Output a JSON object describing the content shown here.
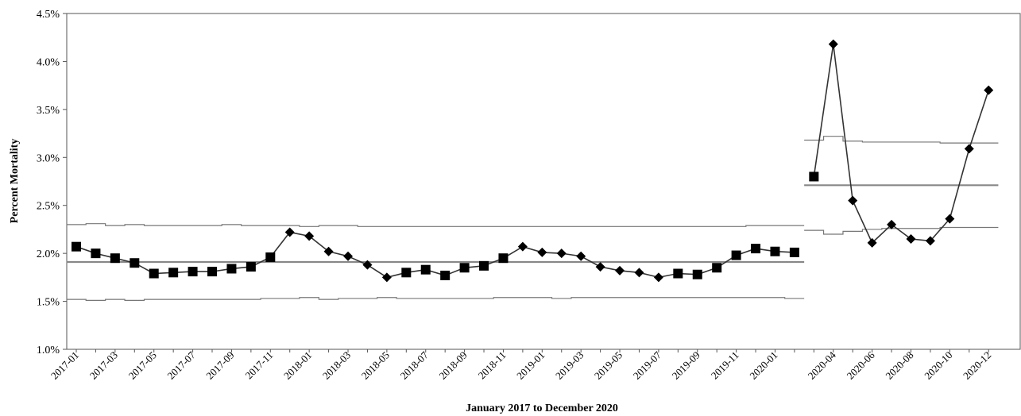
{
  "chart_data": {
    "type": "line",
    "title": "",
    "xlabel": "January 2017 to December 2020",
    "ylabel": "Percent Mortality",
    "ylim": [
      1.0,
      4.5
    ],
    "y_ticks": [
      "1.0%",
      "1.5%",
      "2.0%",
      "2.5%",
      "3.0%",
      "3.5%",
      "4.0%",
      "4.5%"
    ],
    "x_tick_labels": [
      "2017-01",
      "2017-03",
      "2017-05",
      "2017-07",
      "2017-09",
      "2017-11",
      "2018-01",
      "2018-03",
      "2018-05",
      "2018-07",
      "2018-09",
      "2018-11",
      "2019-01",
      "2019-03",
      "2019-05",
      "2019-07",
      "2019-09",
      "2019-11",
      "2020-01",
      "2020-04",
      "2020-06",
      "2020-08",
      "2020-10",
      "2020-12"
    ],
    "grid": false,
    "segments": [
      {
        "months": [
          "2017-01",
          "2017-02",
          "2017-03",
          "2017-04",
          "2017-05",
          "2017-06",
          "2017-07",
          "2017-08",
          "2017-09",
          "2017-10",
          "2017-11",
          "2017-12",
          "2018-01",
          "2018-02",
          "2018-03",
          "2018-04",
          "2018-05",
          "2018-06",
          "2018-07",
          "2018-08",
          "2018-09",
          "2018-10",
          "2018-11",
          "2018-12",
          "2019-01",
          "2019-02",
          "2019-03",
          "2019-04",
          "2019-05",
          "2019-06",
          "2019-07",
          "2019-08",
          "2019-09",
          "2019-10",
          "2019-11",
          "2019-12",
          "2020-01",
          "2020-02"
        ],
        "values": [
          2.07,
          2.0,
          1.95,
          1.9,
          1.79,
          1.8,
          1.81,
          1.81,
          1.84,
          1.86,
          1.96,
          2.22,
          2.18,
          2.02,
          1.97,
          1.88,
          1.75,
          1.8,
          1.83,
          1.77,
          1.85,
          1.87,
          1.95,
          2.07,
          2.01,
          2.0,
          1.97,
          1.86,
          1.82,
          1.8,
          1.75,
          1.79,
          1.78,
          1.85,
          1.98,
          2.05,
          2.02,
          2.01
        ],
        "markers": [
          "square",
          "square",
          "square",
          "square",
          "square",
          "square",
          "square",
          "square",
          "square",
          "square",
          "square",
          "diamond",
          "diamond",
          "diamond",
          "diamond",
          "diamond",
          "diamond",
          "square",
          "square",
          "square",
          "square",
          "square",
          "square",
          "diamond",
          "diamond",
          "diamond",
          "diamond",
          "diamond",
          "diamond",
          "diamond",
          "diamond",
          "square",
          "square",
          "square",
          "square",
          "square",
          "square",
          "square"
        ],
        "center_line": 1.91,
        "upper_limit": [
          2.3,
          2.31,
          2.29,
          2.3,
          2.29,
          2.29,
          2.29,
          2.29,
          2.3,
          2.29,
          2.29,
          2.29,
          2.28,
          2.29,
          2.29,
          2.28,
          2.28,
          2.28,
          2.28,
          2.28,
          2.28,
          2.28,
          2.28,
          2.28,
          2.28,
          2.28,
          2.28,
          2.28,
          2.28,
          2.28,
          2.28,
          2.28,
          2.28,
          2.28,
          2.28,
          2.29,
          2.29,
          2.29
        ],
        "lower_limit": [
          1.52,
          1.51,
          1.52,
          1.51,
          1.52,
          1.52,
          1.52,
          1.52,
          1.52,
          1.52,
          1.53,
          1.53,
          1.54,
          1.52,
          1.53,
          1.53,
          1.54,
          1.53,
          1.53,
          1.53,
          1.53,
          1.53,
          1.54,
          1.54,
          1.54,
          1.53,
          1.54,
          1.54,
          1.54,
          1.54,
          1.54,
          1.54,
          1.54,
          1.54,
          1.54,
          1.54,
          1.54,
          1.53
        ]
      },
      {
        "months": [
          "2020-03",
          "2020-04",
          "2020-05",
          "2020-06",
          "2020-07",
          "2020-08",
          "2020-09",
          "2020-10",
          "2020-11",
          "2020-12"
        ],
        "values": [
          2.8,
          4.18,
          2.55,
          2.11,
          2.3,
          2.15,
          2.13,
          2.36,
          3.09,
          3.7
        ],
        "markers": [
          "square",
          "diamond",
          "diamond",
          "diamond",
          "diamond",
          "diamond",
          "diamond",
          "diamond",
          "diamond",
          "diamond"
        ],
        "center_line": 2.71,
        "upper_limit": [
          3.18,
          3.22,
          3.17,
          3.16,
          3.16,
          3.16,
          3.16,
          3.15,
          3.15,
          3.15
        ],
        "lower_limit": [
          2.24,
          2.2,
          2.23,
          2.25,
          2.26,
          2.26,
          2.26,
          2.27,
          2.27,
          2.27
        ]
      }
    ],
    "colors": {
      "data": "#000000",
      "line": "#333333",
      "limits": "#777777",
      "center": "#888888",
      "axis": "#555555"
    }
  }
}
